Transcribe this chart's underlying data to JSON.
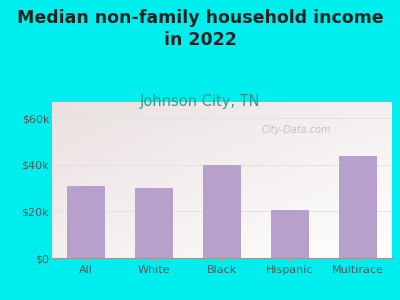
{
  "title": "Median non-family household income\nin 2022",
  "subtitle": "Johnson City, TN",
  "categories": [
    "All",
    "White",
    "Black",
    "Hispanic",
    "Multirace"
  ],
  "values": [
    31000,
    30000,
    40000,
    20500,
    44000
  ],
  "bar_color": "#b8a0cc",
  "background_color": "#00eeee",
  "yticks": [
    0,
    20000,
    40000,
    60000
  ],
  "ytick_labels": [
    "$0",
    "$20k",
    "$40k",
    "$60k"
  ],
  "ylim": [
    0,
    67000
  ],
  "title_fontsize": 12.5,
  "subtitle_fontsize": 10.5,
  "subtitle_color": "#2a9d8f",
  "title_color": "#222222",
  "watermark": "City-Data.com",
  "tick_color": "#555555",
  "tick_fontsize": 8
}
